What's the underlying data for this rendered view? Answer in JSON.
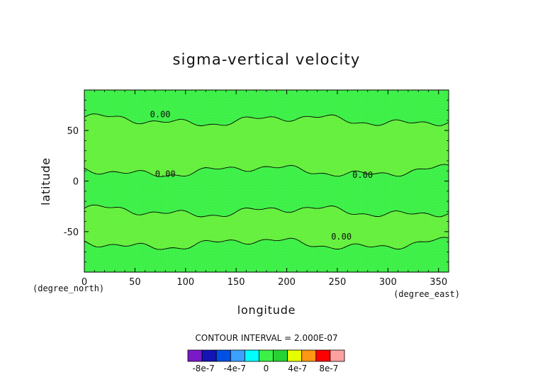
{
  "chart_data": {
    "type": "heatmap",
    "title": "sigma-vertical velocity",
    "xlabel": "longitude",
    "ylabel": "latitude",
    "xunit": "(degree_east)",
    "yunit": "(degree_north)",
    "xlim": [
      0,
      360
    ],
    "ylim": [
      -90,
      90
    ],
    "x_ticks": [
      0,
      50,
      100,
      150,
      200,
      250,
      300,
      350
    ],
    "y_ticks": [
      -50,
      0,
      50
    ],
    "x_tick_labels": [
      "0",
      "50",
      "100",
      "150",
      "200",
      "250",
      "300",
      "350"
    ],
    "y_tick_labels": [
      "-50",
      "0",
      "50"
    ],
    "contour_labels": [
      {
        "text": "0.00",
        "x": 75,
        "y": 66
      },
      {
        "text": "0.00",
        "x": 80,
        "y": 7
      },
      {
        "text": "0.00",
        "x": 275,
        "y": 6
      },
      {
        "text": "0.00",
        "x": 254,
        "y": -55
      }
    ],
    "contour_interval_text": "CONTOUR INTERVAL = 2.000E-07",
    "colorbar": {
      "colors": [
        "#7a19c8",
        "#1414b4",
        "#0050e6",
        "#3ca0ff",
        "#00ffff",
        "#3cf046",
        "#28d232",
        "#e6ff00",
        "#ff9614",
        "#ff0000",
        "#ffa0a0"
      ],
      "tick_labels": [
        "-8e-7",
        "-4e-7",
        "0",
        "4e-7",
        "8e-7"
      ],
      "tick_values": [
        -8e-07,
        -4e-07,
        0,
        4e-07,
        8e-07
      ],
      "range": [
        -1e-06,
        1e-06
      ]
    },
    "background_field_color": "#3cf046",
    "band_field_color": "#64f03c",
    "upward_bands": [
      {
        "name": "",
        "region": "northern mid-latitudes",
        "lat_range": [
          10,
          60
        ]
      },
      {
        "name": "",
        "region": "southern mid-latitudes",
        "lat_range": [
          -62,
          -30
        ]
      }
    ]
  }
}
